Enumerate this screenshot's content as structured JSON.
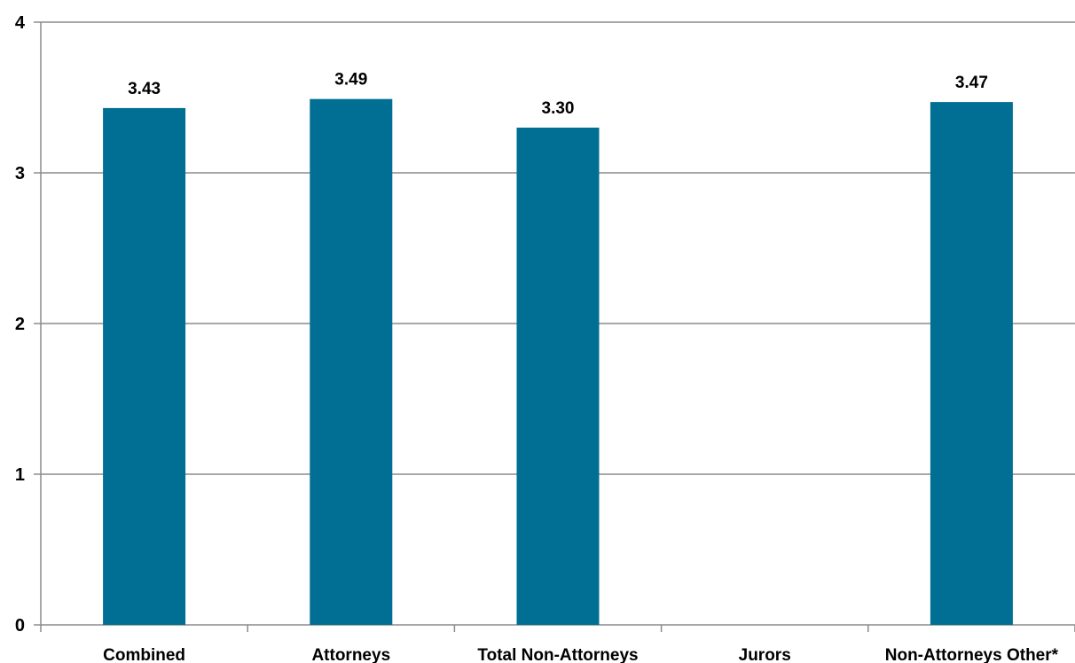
{
  "chart_data": {
    "type": "bar",
    "categories": [
      "Combined",
      "Attorneys",
      "Total Non-Attorneys",
      "Jurors",
      "Non-Attorneys Other*"
    ],
    "values": [
      3.43,
      3.49,
      3.3,
      null,
      3.47
    ],
    "data_labels": [
      "3.43",
      "3.49",
      "3.30",
      "",
      "3.47"
    ],
    "ylim": [
      0,
      4
    ],
    "yticks": [
      "0",
      "1",
      "2",
      "3",
      "4"
    ],
    "grid": true,
    "legend": "none",
    "colors": {
      "bar": "#016f93",
      "grid": "#8c8c8c",
      "axis": "#8c8c8c",
      "text": "#000000"
    }
  }
}
